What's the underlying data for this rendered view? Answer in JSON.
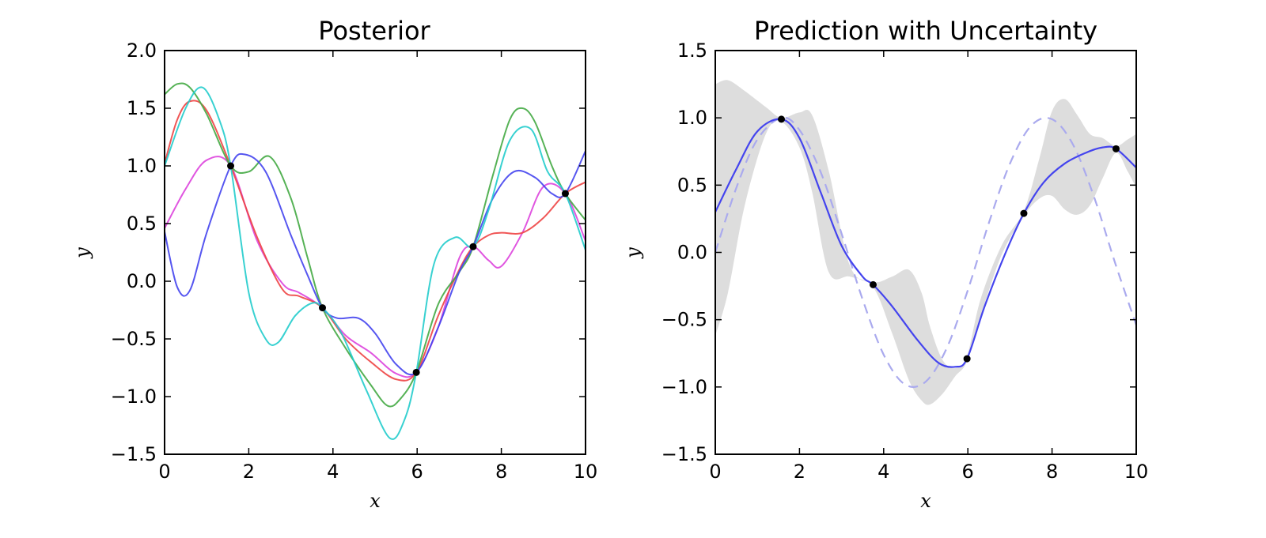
{
  "chart_data": [
    {
      "type": "line",
      "title": "Posterior",
      "xlabel": "x",
      "ylabel": "y",
      "xlim": [
        0,
        10
      ],
      "ylim": [
        -1.5,
        2.0
      ],
      "xticks": [
        "0",
        "2",
        "4",
        "6",
        "8",
        "10"
      ],
      "yticks": [
        "−1.5",
        "−1.0",
        "−0.5",
        "0.0",
        "0.5",
        "1.0",
        "1.5",
        "2.0"
      ],
      "xtick_values": [
        0,
        2,
        4,
        6,
        8,
        10
      ],
      "ytick_values": [
        -1.5,
        -1.0,
        -0.5,
        0.0,
        0.5,
        1.0,
        1.5,
        2.0
      ],
      "observations": {
        "x": [
          1.57,
          3.75,
          5.98,
          7.33,
          9.52
        ],
        "y": [
          1.0,
          -0.23,
          -0.79,
          0.3,
          0.76
        ]
      },
      "series": [
        {
          "color": "#dd44dd",
          "x": [
            0,
            0.5,
            1.0,
            1.57,
            2.2,
            2.8,
            3.2,
            3.75,
            4.3,
            4.9,
            5.5,
            5.98,
            6.5,
            7.0,
            7.33,
            7.7,
            8.0,
            8.5,
            9.0,
            9.52,
            10.0
          ],
          "y": [
            0.46,
            0.8,
            1.05,
            1.0,
            0.35,
            -0.02,
            -0.1,
            -0.23,
            -0.47,
            -0.62,
            -0.8,
            -0.79,
            -0.4,
            0.2,
            0.3,
            0.18,
            0.13,
            0.42,
            0.82,
            0.76,
            0.35
          ]
        },
        {
          "color": "#ee4444",
          "x": [
            0,
            0.3,
            0.6,
            1.0,
            1.57,
            2.2,
            2.8,
            3.2,
            3.75,
            4.3,
            4.9,
            5.5,
            5.98,
            6.5,
            7.0,
            7.33,
            7.7,
            8.0,
            8.5,
            9.0,
            9.52,
            10.0
          ],
          "y": [
            1.02,
            1.4,
            1.56,
            1.48,
            1.0,
            0.38,
            -0.07,
            -0.13,
            -0.23,
            -0.5,
            -0.7,
            -0.85,
            -0.79,
            -0.3,
            0.1,
            0.3,
            0.4,
            0.42,
            0.42,
            0.55,
            0.76,
            0.86
          ]
        },
        {
          "color": "#44aa44",
          "x": [
            0,
            0.3,
            0.6,
            1.0,
            1.57,
            2.0,
            2.5,
            3.0,
            3.4,
            3.75,
            4.3,
            4.9,
            5.3,
            5.6,
            5.98,
            6.5,
            7.0,
            7.33,
            7.8,
            8.2,
            8.5,
            8.8,
            9.2,
            9.52,
            10.0
          ],
          "y": [
            1.62,
            1.71,
            1.68,
            1.45,
            1.0,
            0.95,
            1.08,
            0.72,
            0.2,
            -0.23,
            -0.58,
            -0.9,
            -1.08,
            -1.02,
            -0.79,
            -0.2,
            0.08,
            0.3,
            0.92,
            1.4,
            1.5,
            1.38,
            1.0,
            0.76,
            0.53
          ]
        },
        {
          "color": "#4444ee",
          "x": [
            0,
            0.3,
            0.6,
            1.0,
            1.57,
            1.9,
            2.4,
            3.0,
            3.4,
            3.75,
            4.1,
            4.6,
            5.0,
            5.5,
            5.98,
            6.5,
            7.0,
            7.33,
            7.8,
            8.3,
            8.8,
            9.2,
            9.52,
            10.0
          ],
          "y": [
            0.43,
            -0.05,
            -0.08,
            0.42,
            1.0,
            1.1,
            0.95,
            0.4,
            0.05,
            -0.23,
            -0.32,
            -0.32,
            -0.45,
            -0.72,
            -0.79,
            -0.4,
            0.08,
            0.3,
            0.72,
            0.95,
            0.9,
            0.76,
            0.76,
            1.13
          ]
        },
        {
          "color": "#22cccc",
          "x": [
            0,
            0.5,
            0.9,
            1.3,
            1.57,
            2.0,
            2.4,
            2.7,
            3.1,
            3.5,
            3.75,
            4.2,
            4.8,
            5.35,
            5.7,
            5.98,
            6.4,
            6.9,
            7.33,
            7.7,
            8.2,
            8.7,
            9.1,
            9.52,
            10.0
          ],
          "y": [
            1.0,
            1.5,
            1.68,
            1.4,
            1.0,
            -0.1,
            -0.5,
            -0.53,
            -0.3,
            -0.19,
            -0.23,
            -0.45,
            -0.95,
            -1.36,
            -1.2,
            -0.79,
            0.15,
            0.38,
            0.3,
            0.62,
            1.22,
            1.32,
            0.95,
            0.76,
            0.27
          ]
        }
      ]
    },
    {
      "type": "line",
      "title": "Prediction with Uncertainty",
      "xlabel": "x",
      "ylabel": "y",
      "xlim": [
        0,
        10
      ],
      "ylim": [
        -1.5,
        1.5
      ],
      "xticks": [
        "0",
        "2",
        "4",
        "6",
        "8",
        "10"
      ],
      "yticks": [
        "−1.5",
        "−1.0",
        "−0.5",
        "0.0",
        "0.5",
        "1.0",
        "1.5"
      ],
      "xtick_values": [
        0,
        2,
        4,
        6,
        8,
        10
      ],
      "ytick_values": [
        -1.5,
        -1.0,
        -0.5,
        0.0,
        0.5,
        1.0,
        1.5
      ],
      "observations": {
        "x": [
          1.57,
          3.75,
          5.98,
          7.33,
          9.52
        ],
        "y": [
          0.99,
          -0.24,
          -0.79,
          0.29,
          0.77
        ]
      },
      "mean": {
        "color": "#4444ee",
        "x": [
          0,
          0.5,
          1.0,
          1.57,
          2.0,
          2.5,
          3.0,
          3.5,
          3.75,
          4.2,
          4.8,
          5.3,
          5.7,
          5.98,
          6.4,
          6.9,
          7.33,
          7.8,
          8.3,
          8.8,
          9.2,
          9.52,
          10.0
        ],
        "y": [
          0.3,
          0.62,
          0.9,
          0.99,
          0.85,
          0.45,
          0.05,
          -0.18,
          -0.24,
          -0.4,
          -0.65,
          -0.82,
          -0.85,
          -0.79,
          -0.4,
          0.0,
          0.29,
          0.52,
          0.66,
          0.74,
          0.78,
          0.77,
          0.63
        ]
      },
      "truth": {
        "color": "#aaaaee",
        "style": "dashed",
        "x": [
          0,
          0.5,
          1.0,
          1.57,
          2.0,
          2.5,
          3.0,
          3.5,
          4.0,
          4.5,
          5.0,
          5.5,
          6.0,
          6.5,
          7.0,
          7.5,
          8.0,
          8.5,
          9.0,
          9.5,
          10.0
        ],
        "y": [
          0.0,
          0.48,
          0.84,
          1.0,
          0.91,
          0.6,
          0.14,
          -0.35,
          -0.76,
          -0.98,
          -0.96,
          -0.71,
          -0.28,
          0.22,
          0.66,
          0.94,
          0.99,
          0.8,
          0.41,
          -0.08,
          -0.54
        ]
      },
      "band": {
        "color": "#dddddd",
        "x": [
          0,
          0.3,
          0.7,
          1.2,
          1.57,
          2.0,
          2.3,
          2.7,
          3.2,
          3.75,
          4.2,
          4.6,
          4.9,
          5.1,
          5.4,
          5.7,
          5.98,
          6.3,
          6.8,
          7.33,
          7.7,
          8.0,
          8.3,
          8.6,
          8.9,
          9.2,
          9.52,
          9.8,
          10.0
        ],
        "upper": [
          1.25,
          1.28,
          1.2,
          1.08,
          1.0,
          1.04,
          1.02,
          0.6,
          -0.1,
          -0.22,
          -0.18,
          -0.13,
          -0.3,
          -0.55,
          -0.8,
          -0.86,
          -0.77,
          -0.35,
          0.05,
          0.31,
          0.7,
          1.05,
          1.14,
          1.02,
          0.88,
          0.85,
          0.79,
          0.84,
          0.88
        ],
        "lower": [
          -0.62,
          -0.3,
          0.35,
          0.88,
          0.97,
          0.78,
          0.45,
          -0.15,
          -0.18,
          -0.26,
          -0.6,
          -0.95,
          -1.1,
          -1.13,
          -1.05,
          -0.92,
          -0.81,
          -0.48,
          -0.02,
          0.27,
          0.4,
          0.42,
          0.32,
          0.28,
          0.35,
          0.55,
          0.74,
          0.6,
          0.48
        ]
      }
    }
  ]
}
